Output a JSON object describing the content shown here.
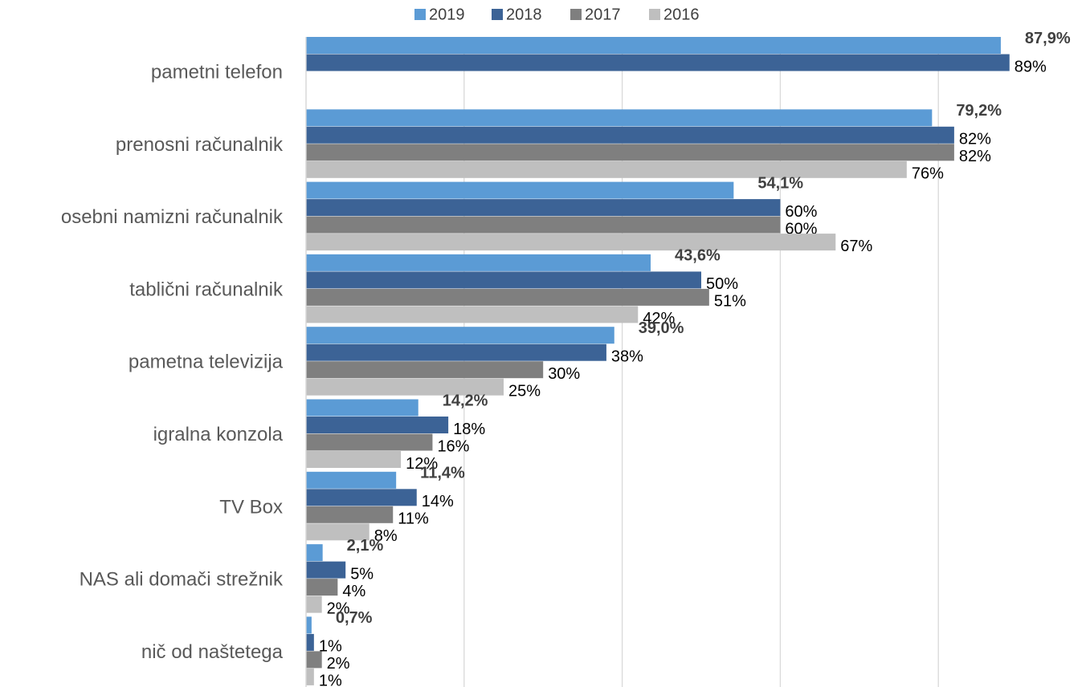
{
  "chart_data": {
    "type": "bar",
    "orientation": "horizontal",
    "categories": [
      "pametni telefon",
      "prenosni računalnik",
      "osebni namizni računalnik",
      "tablični računalnik",
      "pametna televizija",
      "igralna konzola",
      "TV Box",
      "NAS ali domači strežnik",
      "nič od naštetega"
    ],
    "series": [
      {
        "name": "2019",
        "color": "#5b9bd5",
        "values": [
          87.9,
          79.2,
          54.1,
          43.6,
          39.0,
          14.2,
          11.4,
          2.1,
          0.7
        ],
        "value_labels": [
          "87,9%",
          "79,2%",
          "54,1%",
          "43,6%",
          "39,0%",
          "14,2%",
          "11,4%",
          "2,1%",
          "0,7%"
        ]
      },
      {
        "name": "2018",
        "color": "#3c6396",
        "values": [
          89,
          82,
          60,
          50,
          38,
          18,
          14,
          5,
          1
        ],
        "value_labels": [
          "89%",
          "82%",
          "60%",
          "50%",
          "38%",
          "18%",
          "14%",
          "5%",
          "1%"
        ]
      },
      {
        "name": "2017",
        "color": "#7f7f7f",
        "values": [
          null,
          82,
          60,
          51,
          30,
          16,
          11,
          4,
          2
        ],
        "value_labels": [
          null,
          "82%",
          "60%",
          "51%",
          "30%",
          "16%",
          "11%",
          "4%",
          "2%"
        ]
      },
      {
        "name": "2016",
        "color": "#bfbfbf",
        "values": [
          null,
          76,
          67,
          42,
          25,
          12,
          8,
          2,
          1
        ],
        "value_labels": [
          null,
          "76%",
          "67%",
          "42%",
          "25%",
          "12%",
          "8%",
          "2%",
          "1%"
        ]
      }
    ],
    "xlim": [
      0,
      100
    ],
    "xticks": [
      0,
      20,
      40,
      60,
      80
    ],
    "grid": true,
    "legend": "top"
  }
}
